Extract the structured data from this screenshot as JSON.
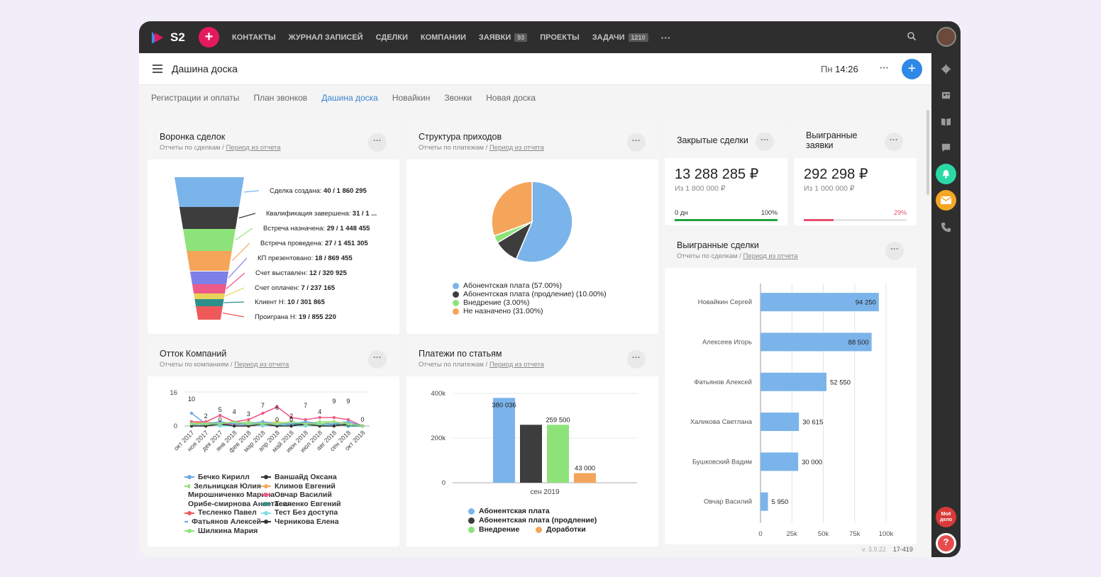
{
  "brand": {
    "name": "S2"
  },
  "nav": {
    "items": [
      {
        "label": "КОНТАКТЫ"
      },
      {
        "label": "ЖУРНАЛ ЗАПИСЕЙ"
      },
      {
        "label": "СДЕЛКИ"
      },
      {
        "label": "КОМПАНИИ"
      },
      {
        "label": "ЗАЯВКИ",
        "badge": "93"
      },
      {
        "label": "ПРОЕКТЫ"
      },
      {
        "label": "ЗАДАЧИ",
        "badge": "1210"
      }
    ],
    "more": "···"
  },
  "header": {
    "title": "Дашина доска",
    "day": "Пн",
    "time": "14:26",
    "more": "···"
  },
  "tabs": [
    {
      "label": "Регистрации и оплаты",
      "active": false
    },
    {
      "label": "План звонков",
      "active": false
    },
    {
      "label": "Дашина доска",
      "active": true
    },
    {
      "label": "Новайкин",
      "active": false
    },
    {
      "label": "Звонки",
      "active": false
    },
    {
      "label": "Новая доска",
      "active": false
    }
  ],
  "cards": {
    "funnel": {
      "title": "Воронка сделок",
      "sub": "Отчеты по сделкам / ",
      "period": "Период из отчета"
    },
    "income": {
      "title": "Структура приходов",
      "sub": "Отчеты по платежам / ",
      "period": "Период из отчета"
    },
    "closed": {
      "title": "Закрытые сделки",
      "value": "13 288 285 ₽",
      "of": "Из 1 800 000 ₽",
      "left": "0 дн",
      "pct": "100%",
      "fill": 1.0
    },
    "won_req": {
      "title": "Выигранные заявки",
      "value": "292 298 ₽",
      "of": "Из 1 000 000 ₽",
      "pct": "29%",
      "fill": 0.29
    },
    "won_deals": {
      "title": "Выигранные сделки",
      "sub": "Отчеты по сделкам / ",
      "period": "Период из отчета"
    },
    "churn": {
      "title": "Отток Компаний",
      "sub": "Отчеты по компаниям / ",
      "period": "Период из отчета"
    },
    "payments": {
      "title": "Платежи по статьям",
      "sub": "Отчеты по платежам / ",
      "period": "Период из отчета"
    }
  },
  "footer": {
    "version": "v. 3.9.22",
    "build": "17-419"
  },
  "rail": {
    "moe_delo": "Моё дело"
  },
  "colors": {
    "accent": "#2f87e6",
    "brand_pink": "#e5195f",
    "topbar": "#2e2e2e",
    "notify": "#2bd9a6",
    "mail": "#f5a623",
    "help": "#e84d4d"
  },
  "chart_data": [
    {
      "type": "funnel",
      "stages": [
        {
          "label": "Сделка создана:",
          "value": "40 / 1 860 295",
          "color": "#7bb4ea"
        },
        {
          "label": "Квалификация завершена:",
          "value": "31 / 1 ...",
          "color": "#3d3d3d"
        },
        {
          "label": "Встреча назначена:",
          "value": "29 / 1 448 455",
          "color": "#8de37a"
        },
        {
          "label": "Встреча проведена:",
          "value": "27 / 1 451 305",
          "color": "#f5a55a"
        },
        {
          "label": "КП презентовано:",
          "value": "18 / 869 455",
          "color": "#7f7fe8"
        },
        {
          "label": "Счет выставлен:",
          "value": "12 / 320 925",
          "color": "#ee5a86"
        },
        {
          "label": "Счет оплачен:",
          "value": "7 / 237 165",
          "color": "#e8d35a"
        },
        {
          "label": "Клиент Н:",
          "value": "10 / 301 865",
          "color": "#2f8f8a"
        },
        {
          "label": "Проиграна Н:",
          "value": "19 / 855 220",
          "color": "#ee5a5a"
        }
      ]
    },
    {
      "type": "pie",
      "slices": [
        {
          "name": "Абонентская плата (57.00%)",
          "value": 57,
          "color": "#7bb4ea"
        },
        {
          "name": "Абонентская плата (продление) (10.00%)",
          "value": 10,
          "color": "#3d3d3d"
        },
        {
          "name": "Внедрение (3.00%)",
          "value": 3,
          "color": "#8de37a"
        },
        {
          "name": "Не назначено (31.00%)",
          "value": 31,
          "color": "#f5a55a"
        }
      ]
    },
    {
      "type": "bar",
      "orientation": "horizontal",
      "categories": [
        "Новайкин Сергей",
        "Алексеев Игорь",
        "Фатьянов Алексей",
        "Халикова Светлана",
        "Бушковский Вадим",
        "Овчар Василий"
      ],
      "values": [
        94250,
        88500,
        52550,
        30615,
        30000,
        5950
      ],
      "labels": [
        "94 250",
        "88 500",
        "52 550",
        "30 615",
        "30 000",
        "5 950"
      ],
      "xticks": [
        "0",
        "25k",
        "50k",
        "75k",
        "100k"
      ],
      "xlim": [
        0,
        100000
      ],
      "color": "#7bb4ea"
    },
    {
      "type": "line",
      "x": [
        "окт 2017",
        "ноя 2017",
        "дек 2017",
        "янв 2018",
        "фев 2018",
        "мар 2018",
        "апр 2018",
        "май 2018",
        "июн 2018",
        "июл 2018",
        "авг 2018",
        "сен 2018",
        "окт 2018"
      ],
      "yticks": [
        "16",
        "0"
      ],
      "ylim": [
        0,
        16
      ],
      "data_labels": [
        {
          "i": 0,
          "text": "10"
        },
        {
          "i": 1,
          "text": "2"
        },
        {
          "i": 2,
          "text": "5"
        },
        {
          "i": 3,
          "text": "4"
        },
        {
          "i": 4,
          "text": "3"
        },
        {
          "i": 5,
          "text": "7"
        },
        {
          "i": 6,
          "text": "6"
        },
        {
          "i": 7,
          "text": "2"
        },
        {
          "i": 8,
          "text": "7"
        },
        {
          "i": 9,
          "text": "4"
        },
        {
          "i": 10,
          "text": "9"
        },
        {
          "i": 11,
          "text": "9"
        },
        {
          "i": 2,
          "text": "0",
          "low": true
        },
        {
          "i": 6,
          "text": "0",
          "low": true
        },
        {
          "i": 7,
          "text": "0",
          "low": true
        },
        {
          "i": 12,
          "text": "0",
          "low": true
        }
      ],
      "series": [
        {
          "name": "Бечко Кирилл",
          "color": "#6fa8e6",
          "marker": "circle",
          "values": [
            6,
            1,
            1,
            2,
            1,
            1,
            2,
            1,
            2,
            1,
            1,
            1,
            0
          ]
        },
        {
          "name": "Ваншайд Оксана",
          "color": "#333333",
          "marker": "cross",
          "values": [
            1,
            0,
            1,
            1,
            0,
            1,
            0,
            1,
            0,
            1,
            0,
            1,
            0
          ]
        },
        {
          "name": "Зельницкая Юлия",
          "color": "#8de37a",
          "marker": "square",
          "values": [
            2,
            1,
            2,
            1,
            2,
            1,
            1,
            2,
            1,
            2,
            2,
            1,
            0
          ]
        },
        {
          "name": "Климов Евгений",
          "color": "#f5a55a",
          "marker": "triangle",
          "values": [
            1,
            2,
            1,
            2,
            1,
            2,
            1,
            2,
            1,
            1,
            2,
            1,
            0
          ]
        },
        {
          "name": "Мирошниченко Марина",
          "color": "#7f7fe8",
          "marker": "triangle-down",
          "values": [
            0,
            1,
            0,
            1,
            1,
            0,
            1,
            0,
            1,
            0,
            1,
            0,
            0
          ]
        },
        {
          "name": "Овчар Василий",
          "color": "#ee5a86",
          "marker": "diamond",
          "values": [
            2,
            2,
            5,
            2,
            3,
            6,
            9,
            4,
            3,
            4,
            4,
            3,
            0
          ]
        },
        {
          "name": "Орибе-смирнова Анастасия",
          "color": "#e8d35a",
          "marker": "diamond",
          "values": [
            1,
            1,
            1,
            1,
            1,
            1,
            2,
            1,
            1,
            1,
            1,
            1,
            0
          ]
        },
        {
          "name": "Тесленко Евгений",
          "color": "#2f8f8a",
          "marker": "square",
          "values": [
            0,
            1,
            1,
            0,
            1,
            1,
            0,
            1,
            1,
            0,
            1,
            0,
            0
          ]
        },
        {
          "name": "Тесленко Павел",
          "color": "#ee5a5a",
          "marker": "triangle",
          "values": [
            1,
            0,
            1,
            1,
            0,
            1,
            1,
            0,
            1,
            1,
            0,
            1,
            0
          ]
        },
        {
          "name": "Тест Без доступа",
          "color": "#7fe0e0",
          "marker": "triangle-down",
          "values": [
            0,
            1,
            0,
            0,
            1,
            0,
            1,
            0,
            0,
            1,
            0,
            1,
            0
          ]
        },
        {
          "name": "Фатьянов Алексей",
          "color": "#6fa8e6",
          "marker": "diamond",
          "values": [
            1,
            1,
            2,
            1,
            1,
            2,
            1,
            1,
            2,
            1,
            1,
            2,
            0
          ]
        },
        {
          "name": "Черникова Елена",
          "color": "#333333",
          "marker": "cross",
          "values": [
            0,
            0,
            1,
            0,
            0,
            1,
            0,
            0,
            1,
            0,
            0,
            1,
            0
          ]
        },
        {
          "name": "Шилкина Мария",
          "color": "#8de37a",
          "marker": "square",
          "values": [
            1,
            1,
            1,
            2,
            1,
            1,
            1,
            2,
            1,
            1,
            2,
            1,
            0
          ]
        }
      ]
    },
    {
      "type": "bar",
      "orientation": "vertical",
      "categories": [
        "сен 2019"
      ],
      "yticks": [
        "400k",
        "200k",
        "0"
      ],
      "ylim": [
        0,
        400000
      ],
      "series": [
        {
          "name": "Абонентская плата",
          "value": 380036,
          "label": "380 036",
          "color": "#7bb4ea"
        },
        {
          "name": "Абонентская плата (продление)",
          "value": 259500,
          "label": "",
          "color": "#3d3d3d"
        },
        {
          "name": "Внедрение",
          "value": 259500,
          "label": "259 500",
          "color": "#8de37a"
        },
        {
          "name": "Доработки",
          "value": 43000,
          "label": "43 000",
          "color": "#f5a55a"
        }
      ]
    }
  ]
}
